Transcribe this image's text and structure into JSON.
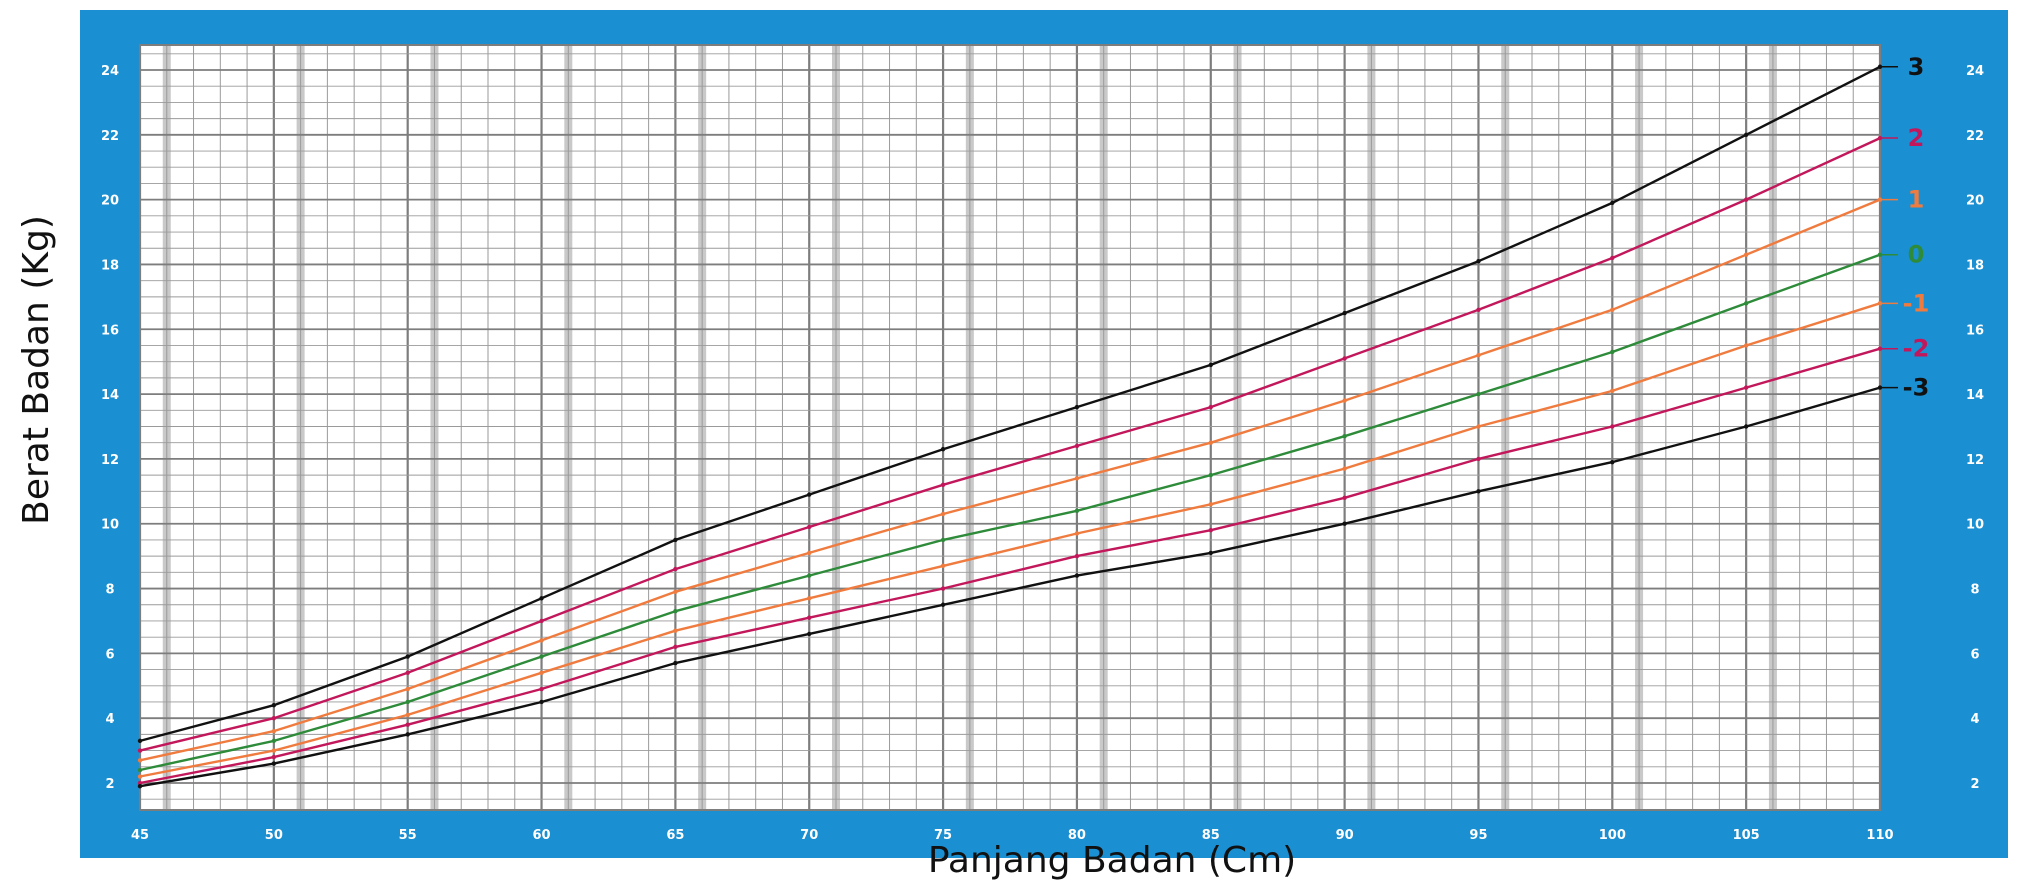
{
  "colors": {
    "frame": "#1a8fd1",
    "plot_bg": "#ffffff",
    "grid_minor": "#9a9a9a",
    "grid_major": "#7d7d7d",
    "band": "#c9c9c9",
    "tick_text": "#ffffff"
  },
  "chart_data": {
    "type": "line",
    "xlabel": "Panjang Badan (Cm)",
    "ylabel": "Berat Badan (Kg)",
    "xlim": [
      45,
      110
    ],
    "ylim": [
      1,
      25
    ],
    "x_ticks": [
      45,
      50,
      55,
      60,
      65,
      70,
      75,
      80,
      85,
      90,
      95,
      100,
      105,
      110
    ],
    "y_ticks": [
      2,
      4,
      6,
      8,
      10,
      12,
      14,
      16,
      18,
      20,
      22,
      24
    ],
    "grid": true,
    "legend": "right end of each curve",
    "x": [
      45,
      50,
      55,
      60,
      65,
      70,
      75,
      80,
      85,
      90,
      95,
      100,
      105,
      110
    ],
    "series": [
      {
        "name": "3",
        "color": "#111111",
        "values": [
          3.3,
          4.4,
          5.9,
          7.7,
          9.5,
          10.9,
          12.3,
          13.6,
          14.9,
          16.5,
          18.1,
          19.9,
          22.0,
          24.1
        ]
      },
      {
        "name": "2",
        "color": "#c2185b",
        "values": [
          3.0,
          4.0,
          5.4,
          7.0,
          8.6,
          9.9,
          11.2,
          12.4,
          13.6,
          15.1,
          16.6,
          18.2,
          20.0,
          21.9
        ]
      },
      {
        "name": "1",
        "color": "#f07b3f",
        "values": [
          2.7,
          3.6,
          4.9,
          6.4,
          7.9,
          9.1,
          10.3,
          11.4,
          12.5,
          13.8,
          15.2,
          16.6,
          18.3,
          20.0
        ]
      },
      {
        "name": "0",
        "color": "#2e8b3a",
        "values": [
          2.4,
          3.3,
          4.5,
          5.9,
          7.3,
          8.4,
          9.5,
          10.4,
          11.5,
          12.7,
          14.0,
          15.3,
          16.8,
          18.3
        ]
      },
      {
        "name": "-1",
        "color": "#f07b3f",
        "values": [
          2.2,
          3.0,
          4.1,
          5.4,
          6.7,
          7.7,
          8.7,
          9.7,
          10.6,
          11.7,
          13.0,
          14.1,
          15.5,
          16.8
        ]
      },
      {
        "name": "-2",
        "color": "#c2185b",
        "values": [
          2.0,
          2.8,
          3.8,
          4.9,
          6.2,
          7.1,
          8.0,
          9.0,
          9.8,
          10.8,
          12.0,
          13.0,
          14.2,
          15.4
        ]
      },
      {
        "name": "-3",
        "color": "#111111",
        "values": [
          1.9,
          2.6,
          3.5,
          4.5,
          5.7,
          6.6,
          7.5,
          8.4,
          9.1,
          10.0,
          11.0,
          11.9,
          13.0,
          14.2
        ]
      }
    ]
  }
}
